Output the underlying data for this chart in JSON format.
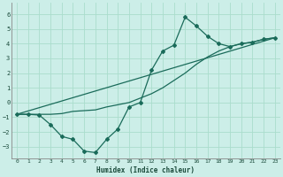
{
  "title": "",
  "xlabel": "Humidex (Indice chaleur)",
  "xlim": [
    -0.5,
    23.5
  ],
  "ylim": [
    -3.8,
    6.8
  ],
  "yticks": [
    -3,
    -2,
    -1,
    0,
    1,
    2,
    3,
    4,
    5,
    6
  ],
  "xticks": [
    0,
    1,
    2,
    3,
    4,
    5,
    6,
    7,
    8,
    9,
    10,
    11,
    12,
    13,
    14,
    15,
    16,
    17,
    18,
    19,
    20,
    21,
    22,
    23
  ],
  "background_color": "#cceee8",
  "grid_color": "#aaddcc",
  "line_color": "#1a6b5a",
  "series1_x": [
    0,
    1,
    2,
    3,
    4,
    5,
    6,
    7,
    8,
    9,
    10,
    11,
    12,
    13,
    14,
    15,
    16,
    17,
    18,
    19,
    20,
    21,
    22,
    23
  ],
  "series1_y": [
    -0.8,
    -0.8,
    -0.85,
    -1.5,
    -2.3,
    -2.5,
    -3.3,
    -3.4,
    -2.5,
    -1.8,
    -0.3,
    0.0,
    2.2,
    3.5,
    3.9,
    5.8,
    5.2,
    4.5,
    4.0,
    3.8,
    4.0,
    4.1,
    4.3,
    4.4
  ],
  "series2_x": [
    0,
    1,
    2,
    3,
    4,
    5,
    6,
    7,
    8,
    9,
    10,
    11,
    12,
    13,
    14,
    15,
    16,
    17,
    18,
    19,
    20,
    21,
    22,
    23
  ],
  "series2_y": [
    -0.8,
    -0.8,
    -0.8,
    -0.8,
    -0.75,
    -0.6,
    -0.55,
    -0.5,
    -0.3,
    -0.15,
    0.0,
    0.3,
    0.6,
    1.0,
    1.5,
    2.0,
    2.6,
    3.1,
    3.5,
    3.8,
    4.0,
    4.1,
    4.3,
    4.4
  ],
  "series3_x": [
    0,
    23
  ],
  "series3_y": [
    -0.8,
    4.4
  ]
}
